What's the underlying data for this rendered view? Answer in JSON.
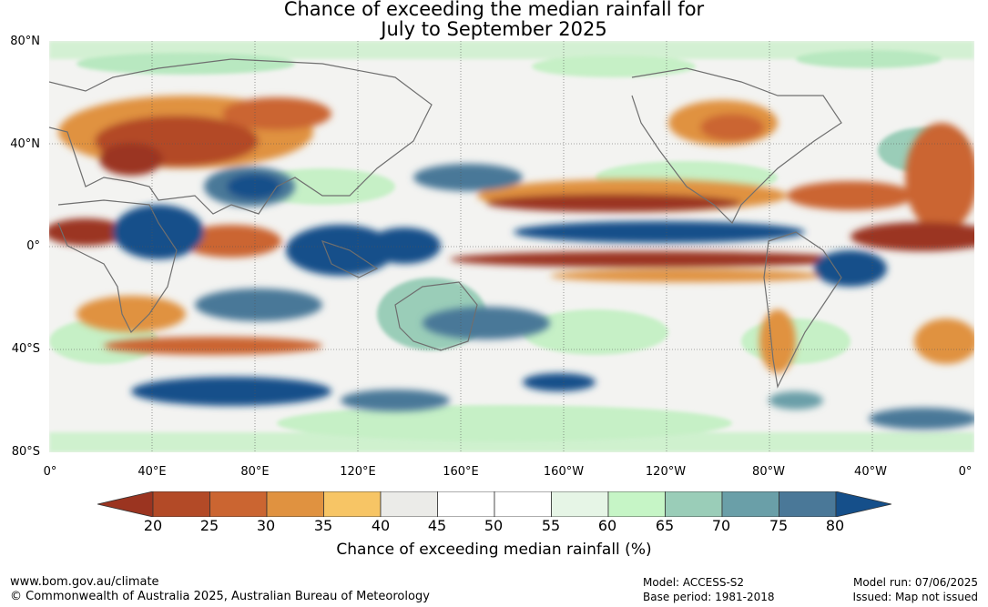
{
  "title_line1": "Chance of exceeding the median rainfall for",
  "title_line2": "July to September 2025",
  "map": {
    "lat_labels": [
      "80°N",
      "40°N",
      "0°",
      "40°S",
      "80°S"
    ],
    "lon_labels": [
      "0°",
      "40°E",
      "80°E",
      "120°E",
      "160°E",
      "160°W",
      "120°W",
      "80°W",
      "40°W",
      "0°"
    ]
  },
  "legend": {
    "ticks": [
      "20",
      "25",
      "30",
      "35",
      "40",
      "45",
      "50",
      "55",
      "60",
      "65",
      "70",
      "75",
      "80"
    ],
    "colors": [
      "#9b3420",
      "#b34a27",
      "#cb6531",
      "#e09240",
      "#f7c565",
      "#ebebe8",
      "#ffffff",
      "#ffffff",
      "#e6f5e6",
      "#c6f5c6",
      "#9acdb8",
      "#6a9fa8",
      "#4a7898",
      "#154f8a"
    ],
    "label": "Chance of exceeding median rainfall (%)"
  },
  "footer": {
    "site": "www.bom.gov.au/climate",
    "copyright": "© Commonwealth of Australia 2025, Australian Bureau of Meteorology",
    "model": "Model: ACCESS-S2",
    "base_period": "Base period: 1981-2018",
    "model_run": "Model run: 07/06/2025",
    "issued": "Issued: Map not issued"
  }
}
